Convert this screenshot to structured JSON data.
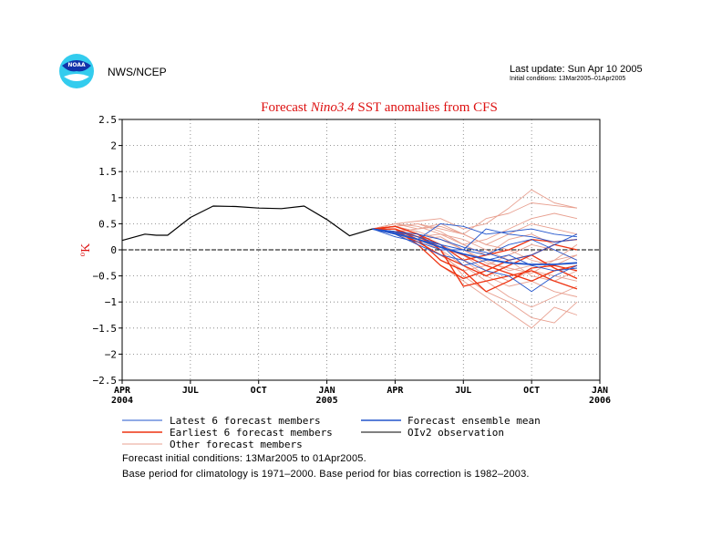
{
  "header": {
    "org": "NWS/NCEP",
    "logo_text": "NOAA",
    "last_update": "Last update: Sun Apr 10 2005",
    "initial_conditions": "Initial conditions: 13Mar2005–01Apr2005"
  },
  "colors": {
    "latest": "#2255cc",
    "earliest": "#ee3311",
    "other": "#e8a090",
    "mean": "#2255cc",
    "obs": "#000000",
    "title": "#dd1111"
  },
  "chart_data": {
    "type": "line",
    "title_parts": [
      "Forecast ",
      "Nino3.4",
      " SST anomalies from CFS"
    ],
    "ylabel_main": "K",
    "ylabel_sup": "o",
    "ylim": [
      -2.5,
      2.5
    ],
    "yticks": [
      2.5,
      2,
      1.5,
      1,
      0.5,
      0,
      -0.5,
      -1,
      -1.5,
      -2,
      -2.5
    ],
    "ytick_labels": [
      "2.5",
      "2",
      "1.5",
      "1",
      "0.5",
      "0",
      "−0.5",
      "−1",
      "−1.5",
      "−2",
      "−2.5"
    ],
    "xlim_months": [
      0,
      21
    ],
    "xticks": [
      {
        "m": 0,
        "label": "APR",
        "year": "2004"
      },
      {
        "m": 3,
        "label": "JUL",
        "year": ""
      },
      {
        "m": 6,
        "label": "OCT",
        "year": ""
      },
      {
        "m": 9,
        "label": "JAN",
        "year": "2005"
      },
      {
        "m": 12,
        "label": "APR",
        "year": ""
      },
      {
        "m": 15,
        "label": "JUL",
        "year": ""
      },
      {
        "m": 18,
        "label": "OCT",
        "year": ""
      },
      {
        "m": 21,
        "label": "JAN",
        "year": "2006"
      }
    ],
    "grid": true,
    "zero_line": true,
    "observation": {
      "name": "OIv2 observation",
      "x": [
        0,
        1,
        1.5,
        2,
        3,
        4,
        5,
        6,
        7,
        8,
        9,
        10,
        11
      ],
      "y": [
        0.18,
        0.3,
        0.28,
        0.28,
        0.62,
        0.84,
        0.83,
        0.8,
        0.79,
        0.84,
        0.58,
        0.27,
        0.4
      ]
    },
    "ensemble_mean": {
      "name": "Forecast ensemble mean",
      "x": [
        11,
        12,
        13,
        14,
        15,
        16,
        17,
        18,
        19,
        20
      ],
      "y": [
        0.4,
        0.32,
        0.2,
        0.05,
        -0.08,
        -0.18,
        -0.25,
        -0.28,
        -0.28,
        -0.25
      ]
    },
    "member_x": [
      11,
      12,
      13,
      14,
      15,
      16,
      17,
      18,
      19,
      20
    ],
    "latest_members": [
      [
        0.4,
        0.3,
        0.2,
        0.5,
        0.45,
        0.3,
        0.35,
        0.4,
        0.3,
        0.25
      ],
      [
        0.4,
        0.35,
        0.25,
        0.1,
        0.0,
        -0.1,
        0.1,
        0.2,
        0.0,
        -0.2
      ],
      [
        0.4,
        0.3,
        0.1,
        -0.1,
        -0.2,
        -0.4,
        -0.5,
        -0.8,
        -0.5,
        -0.3
      ],
      [
        0.4,
        0.25,
        0.15,
        0.0,
        0.0,
        0.4,
        0.3,
        0.25,
        0.15,
        0.2
      ],
      [
        0.4,
        0.3,
        0.2,
        0.1,
        -0.3,
        -0.2,
        -0.1,
        -0.3,
        -0.4,
        -0.35
      ],
      [
        0.4,
        0.35,
        0.3,
        0.2,
        0.05,
        -0.05,
        -0.2,
        -0.1,
        0.1,
        0.3
      ]
    ],
    "earliest_members": [
      [
        0.4,
        0.45,
        0.3,
        0.0,
        -0.7,
        -0.6,
        -0.5,
        -0.4,
        -0.6,
        -0.75
      ],
      [
        0.4,
        0.4,
        0.2,
        -0.2,
        -0.4,
        -0.8,
        -0.6,
        -0.35,
        -0.3,
        -0.4
      ],
      [
        0.4,
        0.35,
        0.15,
        -0.1,
        -0.3,
        -0.5,
        -0.3,
        -0.1,
        0.1,
        0.0
      ],
      [
        0.4,
        0.4,
        0.25,
        0.05,
        -0.1,
        -0.3,
        -0.45,
        -0.6,
        -0.4,
        -0.3
      ],
      [
        0.4,
        0.45,
        0.3,
        0.1,
        -0.2,
        -0.1,
        0.0,
        0.2,
        0.15,
        0.2
      ],
      [
        0.4,
        0.4,
        0.1,
        -0.3,
        -0.55,
        -0.4,
        -0.2,
        -0.1,
        -0.35,
        -0.55
      ]
    ],
    "other_members": [
      [
        0.4,
        0.5,
        0.55,
        0.6,
        0.4,
        0.5,
        0.8,
        1.15,
        0.9,
        0.8
      ],
      [
        0.4,
        0.45,
        0.5,
        0.4,
        0.3,
        0.6,
        0.7,
        0.9,
        0.85,
        0.8
      ],
      [
        0.4,
        0.3,
        0.1,
        -0.3,
        -0.6,
        -0.9,
        -1.2,
        -1.5,
        -1.1,
        -1.25
      ],
      [
        0.4,
        0.35,
        0.2,
        0.0,
        -0.5,
        -0.8,
        -1.0,
        -1.3,
        -1.4,
        -1.0
      ],
      [
        0.4,
        0.5,
        0.4,
        0.5,
        0.3,
        0.1,
        0.3,
        0.5,
        0.4,
        0.3
      ],
      [
        0.4,
        0.3,
        0.2,
        0.1,
        -0.2,
        -0.5,
        -0.7,
        -0.6,
        -0.8,
        -0.9
      ],
      [
        0.4,
        0.45,
        0.35,
        0.2,
        0.0,
        -0.2,
        -0.4,
        -0.3,
        -0.2,
        -0.1
      ],
      [
        0.4,
        0.35,
        0.25,
        0.3,
        0.2,
        0.0,
        -0.2,
        -0.5,
        -0.6,
        -0.4
      ],
      [
        0.4,
        0.5,
        0.45,
        0.3,
        0.1,
        0.2,
        0.4,
        0.6,
        0.7,
        0.6
      ],
      [
        0.4,
        0.3,
        0.15,
        -0.1,
        -0.4,
        -0.3,
        -0.1,
        0.1,
        0.0,
        -0.2
      ],
      [
        0.4,
        0.45,
        0.3,
        0.1,
        -0.1,
        -0.4,
        -0.6,
        -0.4,
        -0.5,
        -0.6
      ],
      [
        0.4,
        0.35,
        0.4,
        0.45,
        0.3,
        0.1,
        0.0,
        -0.2,
        -0.3,
        -0.1
      ],
      [
        0.4,
        0.4,
        0.2,
        0.0,
        -0.3,
        -0.6,
        -0.9,
        -1.1,
        -0.9,
        -0.7
      ],
      [
        0.4,
        0.45,
        0.5,
        0.35,
        0.1,
        -0.1,
        0.2,
        0.3,
        0.1,
        0.0
      ],
      [
        0.4,
        0.3,
        0.2,
        0.25,
        0.0,
        -0.25,
        -0.35,
        -0.45,
        -0.2,
        0.1
      ]
    ]
  },
  "legend": {
    "latest": "Latest 6 forecast members",
    "earliest": "Earliest 6 forecast members",
    "other": "Other forecast members",
    "mean": "Forecast ensemble mean",
    "obs": "OIv2 observation"
  },
  "footer": {
    "line1": "Forecast initial conditions: 13Mar2005 to 01Apr2005.",
    "line2": "Base period for climatology is 1971–2000. Base period for bias correction is 1982–2003."
  }
}
